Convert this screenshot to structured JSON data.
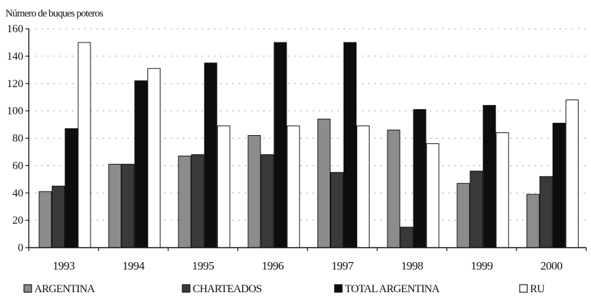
{
  "chart_data": {
    "type": "bar",
    "title": "",
    "xlabel": "",
    "ylabel": "Número de buques poteros",
    "categories": [
      "1993",
      "1994",
      "1995",
      "1996",
      "1997",
      "1998",
      "1999",
      "2000"
    ],
    "ylim": [
      0,
      160
    ],
    "yticks": [
      0,
      20,
      40,
      60,
      80,
      100,
      120,
      140,
      160
    ],
    "grid": true,
    "legend_position": "bottom",
    "series": [
      {
        "name": "ARGENTINA",
        "color": "#8c8c8c",
        "values": [
          41,
          61,
          67,
          82,
          94,
          86,
          47,
          39
        ]
      },
      {
        "name": "CHARTEADOS",
        "color": "#3a3a3a",
        "values": [
          45,
          61,
          68,
          68,
          55,
          15,
          56,
          52
        ]
      },
      {
        "name": "TOTAL ARGENTINA",
        "color": "#0d0d0d",
        "values": [
          87,
          122,
          135,
          150,
          150,
          101,
          104,
          91
        ]
      },
      {
        "name": "RU",
        "color": "#ffffff",
        "values": [
          150,
          131,
          89,
          89,
          89,
          76,
          84,
          108
        ]
      }
    ]
  }
}
